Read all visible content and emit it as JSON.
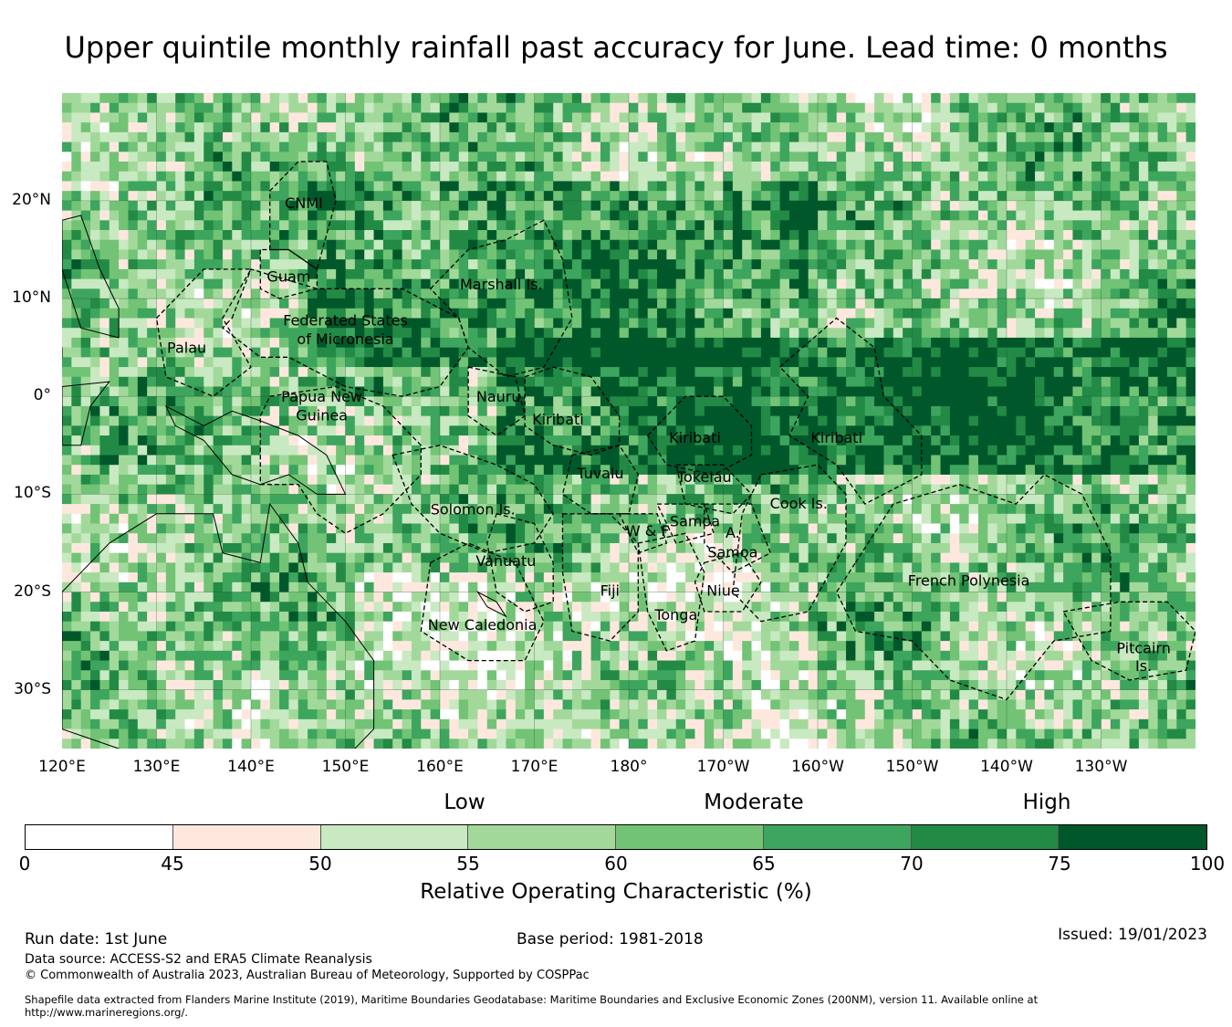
{
  "title": "Upper quintile monthly rainfall past accuracy for June. Lead time: 0 months",
  "map": {
    "lat_range": [
      -36,
      31
    ],
    "lon_range": [
      120,
      240
    ],
    "grid_step_deg": 1,
    "lat_ticks": [
      "20°N",
      "10°N",
      "0°",
      "10°S",
      "20°S",
      "30°S"
    ],
    "lon_ticks": [
      "120°E",
      "130°E",
      "140°E",
      "150°E",
      "160°E",
      "170°E",
      "180°",
      "170°W",
      "160°W",
      "150°W",
      "140°W",
      "130°W"
    ],
    "regions": [
      {
        "name": "CNMI",
        "lon": 145.6,
        "lat": 19.8
      },
      {
        "name": "Guam",
        "lon": 144.0,
        "lat": 12.3
      },
      {
        "name": "Marshall Is.",
        "lon": 166.5,
        "lat": 11.5
      },
      {
        "name": "Federated States",
        "lon": 150.0,
        "lat": 7.8
      },
      {
        "name": "of Micronesia",
        "lon": 150.0,
        "lat": 5.9
      },
      {
        "name": "Palau",
        "lon": 133.2,
        "lat": 5.0
      },
      {
        "name": "Papua New",
        "lon": 147.5,
        "lat": 0.0
      },
      {
        "name": "Guinea",
        "lon": 147.5,
        "lat": -1.9
      },
      {
        "name": "Nauru",
        "lon": 166.2,
        "lat": 0.0
      },
      {
        "name": "Kiribati",
        "lon": 172.5,
        "lat": -2.3
      },
      {
        "name": "Kiribati",
        "lon": 187.0,
        "lat": -4.2
      },
      {
        "name": "Kiribati",
        "lon": 202.0,
        "lat": -4.2
      },
      {
        "name": "Tuvalu",
        "lon": 177.0,
        "lat": -7.8
      },
      {
        "name": "Tokelau",
        "lon": 188.0,
        "lat": -8.2
      },
      {
        "name": "Cook Is.",
        "lon": 198.0,
        "lat": -10.9
      },
      {
        "name": "Solomon Is.",
        "lon": 163.5,
        "lat": -11.5
      },
      {
        "name": "Samoa",
        "lon": 187.0,
        "lat": -12.7
      },
      {
        "name": "W & F",
        "lon": 182.0,
        "lat": -13.7
      },
      {
        "name": "A.",
        "lon": 191.0,
        "lat": -13.9
      },
      {
        "name": "Samoa",
        "lon": 191.0,
        "lat": -15.9
      },
      {
        "name": "Vanuatu",
        "lon": 167.0,
        "lat": -16.8
      },
      {
        "name": "French Polynesia",
        "lon": 216.0,
        "lat": -18.8
      },
      {
        "name": "Fiji",
        "lon": 178.0,
        "lat": -19.8
      },
      {
        "name": "Niue",
        "lon": 190.0,
        "lat": -19.8
      },
      {
        "name": "Tonga",
        "lon": 185.0,
        "lat": -22.3
      },
      {
        "name": "New Caledonia",
        "lon": 164.5,
        "lat": -23.3
      },
      {
        "name": "Pitcairn",
        "lon": 234.5,
        "lat": -25.7
      },
      {
        "name": "Is.",
        "lon": 234.5,
        "lat": -27.5
      }
    ],
    "boundaries": [
      {
        "name": "Palau",
        "points": [
          [
            130,
            8
          ],
          [
            135,
            13
          ],
          [
            140,
            13
          ],
          [
            137,
            8
          ],
          [
            140,
            3
          ],
          [
            136,
            0
          ],
          [
            131,
            2
          ]
        ]
      },
      {
        "name": "CNMI",
        "points": [
          [
            142,
            15
          ],
          [
            142,
            21
          ],
          [
            145,
            24
          ],
          [
            148,
            24
          ],
          [
            149,
            20
          ],
          [
            147,
            13
          ],
          [
            144,
            15
          ]
        ]
      },
      {
        "name": "Guam",
        "points": [
          [
            141,
            15
          ],
          [
            141,
            11
          ],
          [
            143,
            10
          ],
          [
            147,
            11
          ],
          [
            147,
            13
          ],
          [
            144,
            15
          ]
        ]
      },
      {
        "name": "FSM",
        "points": [
          [
            138,
            8
          ],
          [
            140,
            13
          ],
          [
            147,
            11
          ],
          [
            156,
            11
          ],
          [
            162,
            8
          ],
          [
            163,
            5
          ],
          [
            160,
            1
          ],
          [
            156,
            0
          ],
          [
            150,
            1
          ],
          [
            144,
            4
          ],
          [
            141,
            4
          ],
          [
            137,
            7
          ]
        ]
      },
      {
        "name": "Marshall Is.",
        "points": [
          [
            159,
            11
          ],
          [
            163,
            15
          ],
          [
            167,
            16
          ],
          [
            171,
            18
          ],
          [
            173,
            14
          ],
          [
            174,
            8
          ],
          [
            171,
            3
          ],
          [
            167,
            2
          ],
          [
            163,
            5
          ],
          [
            162,
            8
          ]
        ]
      },
      {
        "name": "Nauru",
        "points": [
          [
            163,
            3
          ],
          [
            168,
            2
          ],
          [
            169,
            -2
          ],
          [
            166,
            -4
          ],
          [
            163,
            -2
          ]
        ]
      },
      {
        "name": "Kiribati-Gilbert",
        "points": [
          [
            169,
            2
          ],
          [
            172,
            3
          ],
          [
            176,
            2
          ],
          [
            179,
            -2
          ],
          [
            179,
            -5
          ],
          [
            176,
            -6
          ],
          [
            172,
            -5
          ],
          [
            169,
            -3
          ]
        ]
      },
      {
        "name": "Kiribati-Phoenix",
        "points": [
          [
            182,
            -4
          ],
          [
            186,
            0
          ],
          [
            190,
            0
          ],
          [
            193,
            -3
          ],
          [
            193,
            -6
          ],
          [
            189,
            -8
          ],
          [
            184,
            -7
          ]
        ]
      },
      {
        "name": "Kiribati-Line",
        "points": [
          [
            196,
            3
          ],
          [
            202,
            8
          ],
          [
            206,
            5
          ],
          [
            207,
            0
          ],
          [
            211,
            -4
          ],
          [
            211,
            -8
          ],
          [
            205,
            -11
          ],
          [
            202,
            -7
          ],
          [
            197,
            -4
          ],
          [
            199,
            0
          ]
        ]
      },
      {
        "name": "PNG",
        "points": [
          [
            142,
            0
          ],
          [
            149,
            1
          ],
          [
            154,
            -1
          ],
          [
            158,
            -5
          ],
          [
            158,
            -8
          ],
          [
            154,
            -12
          ],
          [
            150,
            -14
          ],
          [
            147,
            -12
          ],
          [
            145,
            -9
          ],
          [
            141,
            -9
          ],
          [
            141,
            -2
          ]
        ]
      },
      {
        "name": "Solomon Is.",
        "points": [
          [
            155,
            -6
          ],
          [
            160,
            -5
          ],
          [
            166,
            -7
          ],
          [
            170,
            -9
          ],
          [
            172,
            -12
          ],
          [
            170,
            -15
          ],
          [
            165,
            -16
          ],
          [
            160,
            -14
          ],
          [
            157,
            -11
          ]
        ]
      },
      {
        "name": "Tuvalu",
        "points": [
          [
            174,
            -6
          ],
          [
            179,
            -5
          ],
          [
            181,
            -8
          ],
          [
            180,
            -12
          ],
          [
            176,
            -12
          ],
          [
            173,
            -10
          ]
        ]
      },
      {
        "name": "Tokelau",
        "points": [
          [
            185,
            -7
          ],
          [
            190,
            -7
          ],
          [
            193,
            -10
          ],
          [
            191,
            -12
          ],
          [
            186,
            -11
          ]
        ]
      },
      {
        "name": "Vanuatu",
        "points": [
          [
            166,
            -12
          ],
          [
            170,
            -13
          ],
          [
            172,
            -17
          ],
          [
            172,
            -21
          ],
          [
            169,
            -22
          ],
          [
            166,
            -20
          ],
          [
            165,
            -15
          ]
        ]
      },
      {
        "name": "New Caledonia",
        "points": [
          [
            159,
            -17
          ],
          [
            163,
            -15
          ],
          [
            168,
            -17
          ],
          [
            171,
            -23
          ],
          [
            169,
            -27
          ],
          [
            163,
            -27
          ],
          [
            158,
            -24
          ]
        ]
      },
      {
        "name": "Fiji",
        "points": [
          [
            173,
            -12
          ],
          [
            178,
            -12
          ],
          [
            181,
            -15
          ],
          [
            181,
            -22
          ],
          [
            178,
            -25
          ],
          [
            174,
            -24
          ],
          [
            173,
            -18
          ]
        ]
      },
      {
        "name": "Wallis-Futuna",
        "points": [
          [
            179,
            -12
          ],
          [
            183,
            -12
          ],
          [
            184,
            -15
          ],
          [
            181,
            -16
          ]
        ]
      },
      {
        "name": "Samoa",
        "points": [
          [
            183,
            -11
          ],
          [
            188,
            -11
          ],
          [
            189,
            -14
          ],
          [
            185,
            -15
          ]
        ]
      },
      {
        "name": "Am. Samoa",
        "points": [
          [
            188,
            -11
          ],
          [
            193,
            -11
          ],
          [
            195,
            -16
          ],
          [
            191,
            -18
          ],
          [
            188,
            -15
          ]
        ]
      },
      {
        "name": "Tonga",
        "points": [
          [
            181,
            -15
          ],
          [
            186,
            -14
          ],
          [
            188,
            -18
          ],
          [
            187,
            -25
          ],
          [
            184,
            -26
          ],
          [
            182,
            -22
          ]
        ]
      },
      {
        "name": "Niue",
        "points": [
          [
            188,
            -17
          ],
          [
            192,
            -16
          ],
          [
            194,
            -19
          ],
          [
            192,
            -22
          ],
          [
            188,
            -22
          ],
          [
            187,
            -19
          ]
        ]
      },
      {
        "name": "Cook Is.",
        "points": [
          [
            194,
            -8
          ],
          [
            200,
            -7
          ],
          [
            203,
            -10
          ],
          [
            203,
            -15
          ],
          [
            199,
            -22
          ],
          [
            194,
            -23
          ],
          [
            191,
            -20
          ],
          [
            192,
            -12
          ]
        ]
      },
      {
        "name": "French Polynesia",
        "points": [
          [
            204,
            -17
          ],
          [
            208,
            -11
          ],
          [
            215,
            -9
          ],
          [
            221,
            -11
          ],
          [
            224,
            -8
          ],
          [
            228,
            -10
          ],
          [
            231,
            -16
          ],
          [
            231,
            -24
          ],
          [
            225,
            -25
          ],
          [
            220,
            -31
          ],
          [
            214,
            -29
          ],
          [
            210,
            -25
          ],
          [
            204,
            -24
          ],
          [
            202,
            -20
          ]
        ]
      },
      {
        "name": "Pitcairn",
        "points": [
          [
            226,
            -22
          ],
          [
            232,
            -21
          ],
          [
            237,
            -21
          ],
          [
            240,
            -24
          ],
          [
            239,
            -28
          ],
          [
            233,
            -29
          ],
          [
            229,
            -27
          ]
        ]
      }
    ]
  },
  "categories": [
    "Low",
    "Moderate",
    "High"
  ],
  "colorbar": {
    "ticks": [
      "0",
      "45",
      "50",
      "55",
      "60",
      "65",
      "70",
      "75",
      "100"
    ],
    "colors": [
      "#ffffff",
      "#fee8de",
      "#c8e9c1",
      "#a2d99b",
      "#72c375",
      "#3da55d",
      "#228a45",
      "#00582a"
    ],
    "title": "Relative Operating Characteristic (%)"
  },
  "footer": {
    "run_date": "Run date: 1st June",
    "base_period": "Base period: 1981-2018",
    "issued": "Issued: 19/01/2023",
    "data_source": "Data source: ACCESS-S2 and ERA5 Climate Reanalysis",
    "copyright": "© Commonwealth of Australia 2023, Australian Bureau of Meteorology, Supported by COSPPac",
    "shapefile_1": "Shapefile data extracted from Flanders Marine Institute (2019), Maritime Boundaries Geodatabase: Maritime Boundaries and Exclusive Economic Zones (200NM), version 11. Available online at",
    "shapefile_2": "http://www.marineregions.org/."
  }
}
